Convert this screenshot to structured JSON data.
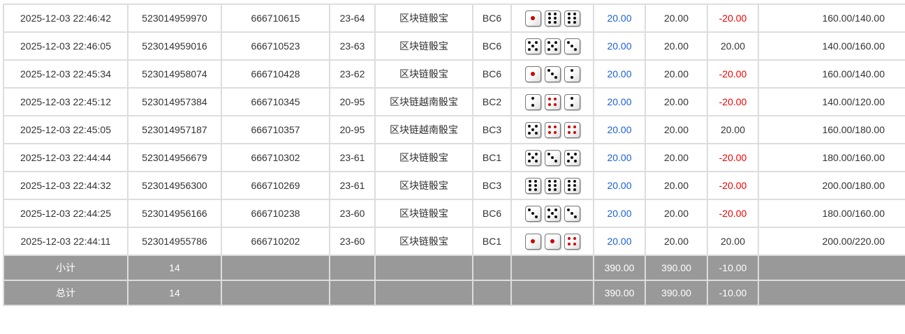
{
  "rows": [
    {
      "time": "2025-12-03 22:46:42",
      "order": "523014959970",
      "round": "666710615",
      "issue": "23-64",
      "game": "区块链骰宝",
      "table": "BC6",
      "dice": [
        1,
        6,
        6
      ],
      "bet": "20.00",
      "valid": "20.00",
      "win": "-20.00",
      "balance": "160.00/140.00"
    },
    {
      "time": "2025-12-03 22:46:05",
      "order": "523014959016",
      "round": "666710523",
      "issue": "23-63",
      "game": "区块链骰宝",
      "table": "BC6",
      "dice": [
        5,
        5,
        3
      ],
      "bet": "20.00",
      "valid": "20.00",
      "win": "20.00",
      "balance": "140.00/160.00"
    },
    {
      "time": "2025-12-03 22:45:34",
      "order": "523014958074",
      "round": "666710428",
      "issue": "23-62",
      "game": "区块链骰宝",
      "table": "BC6",
      "dice": [
        1,
        3,
        2
      ],
      "bet": "20.00",
      "valid": "20.00",
      "win": "-20.00",
      "balance": "160.00/140.00"
    },
    {
      "time": "2025-12-03 22:45:12",
      "order": "523014957384",
      "round": "666710345",
      "issue": "20-95",
      "game": "区块链越南骰宝",
      "table": "BC2",
      "dice": [
        2,
        4,
        2
      ],
      "bet": "20.00",
      "valid": "20.00",
      "win": "-20.00",
      "balance": "140.00/120.00"
    },
    {
      "time": "2025-12-03 22:45:05",
      "order": "523014957187",
      "round": "666710357",
      "issue": "20-95",
      "game": "区块链越南骰宝",
      "table": "BC3",
      "dice": [
        5,
        4,
        4
      ],
      "bet": "20.00",
      "valid": "20.00",
      "win": "20.00",
      "balance": "160.00/180.00"
    },
    {
      "time": "2025-12-03 22:44:44",
      "order": "523014956679",
      "round": "666710302",
      "issue": "23-61",
      "game": "区块链骰宝",
      "table": "BC1",
      "dice": [
        5,
        3,
        5
      ],
      "bet": "20.00",
      "valid": "20.00",
      "win": "-20.00",
      "balance": "180.00/160.00"
    },
    {
      "time": "2025-12-03 22:44:32",
      "order": "523014956300",
      "round": "666710269",
      "issue": "23-61",
      "game": "区块链骰宝",
      "table": "BC3",
      "dice": [
        6,
        6,
        6
      ],
      "bet": "20.00",
      "valid": "20.00",
      "win": "-20.00",
      "balance": "200.00/180.00"
    },
    {
      "time": "2025-12-03 22:44:25",
      "order": "523014956166",
      "round": "666710238",
      "issue": "23-60",
      "game": "区块链骰宝",
      "table": "BC6",
      "dice": [
        3,
        5,
        3
      ],
      "bet": "20.00",
      "valid": "20.00",
      "win": "-20.00",
      "balance": "180.00/160.00"
    },
    {
      "time": "2025-12-03 22:44:11",
      "order": "523014955786",
      "round": "666710202",
      "issue": "23-60",
      "game": "区块链骰宝",
      "table": "BC1",
      "dice": [
        1,
        1,
        4
      ],
      "bet": "20.00",
      "valid": "20.00",
      "win": "20.00",
      "balance": "200.00/220.00"
    }
  ],
  "subtotal": {
    "label": "小计",
    "count": "14",
    "bet": "390.00",
    "valid": "390.00",
    "win": "-10.00"
  },
  "total": {
    "label": "总计",
    "count": "14",
    "bet": "390.00",
    "valid": "390.00",
    "win": "-10.00"
  },
  "colors": {
    "bet": "#1a5fd6",
    "loss": "#e00000"
  }
}
